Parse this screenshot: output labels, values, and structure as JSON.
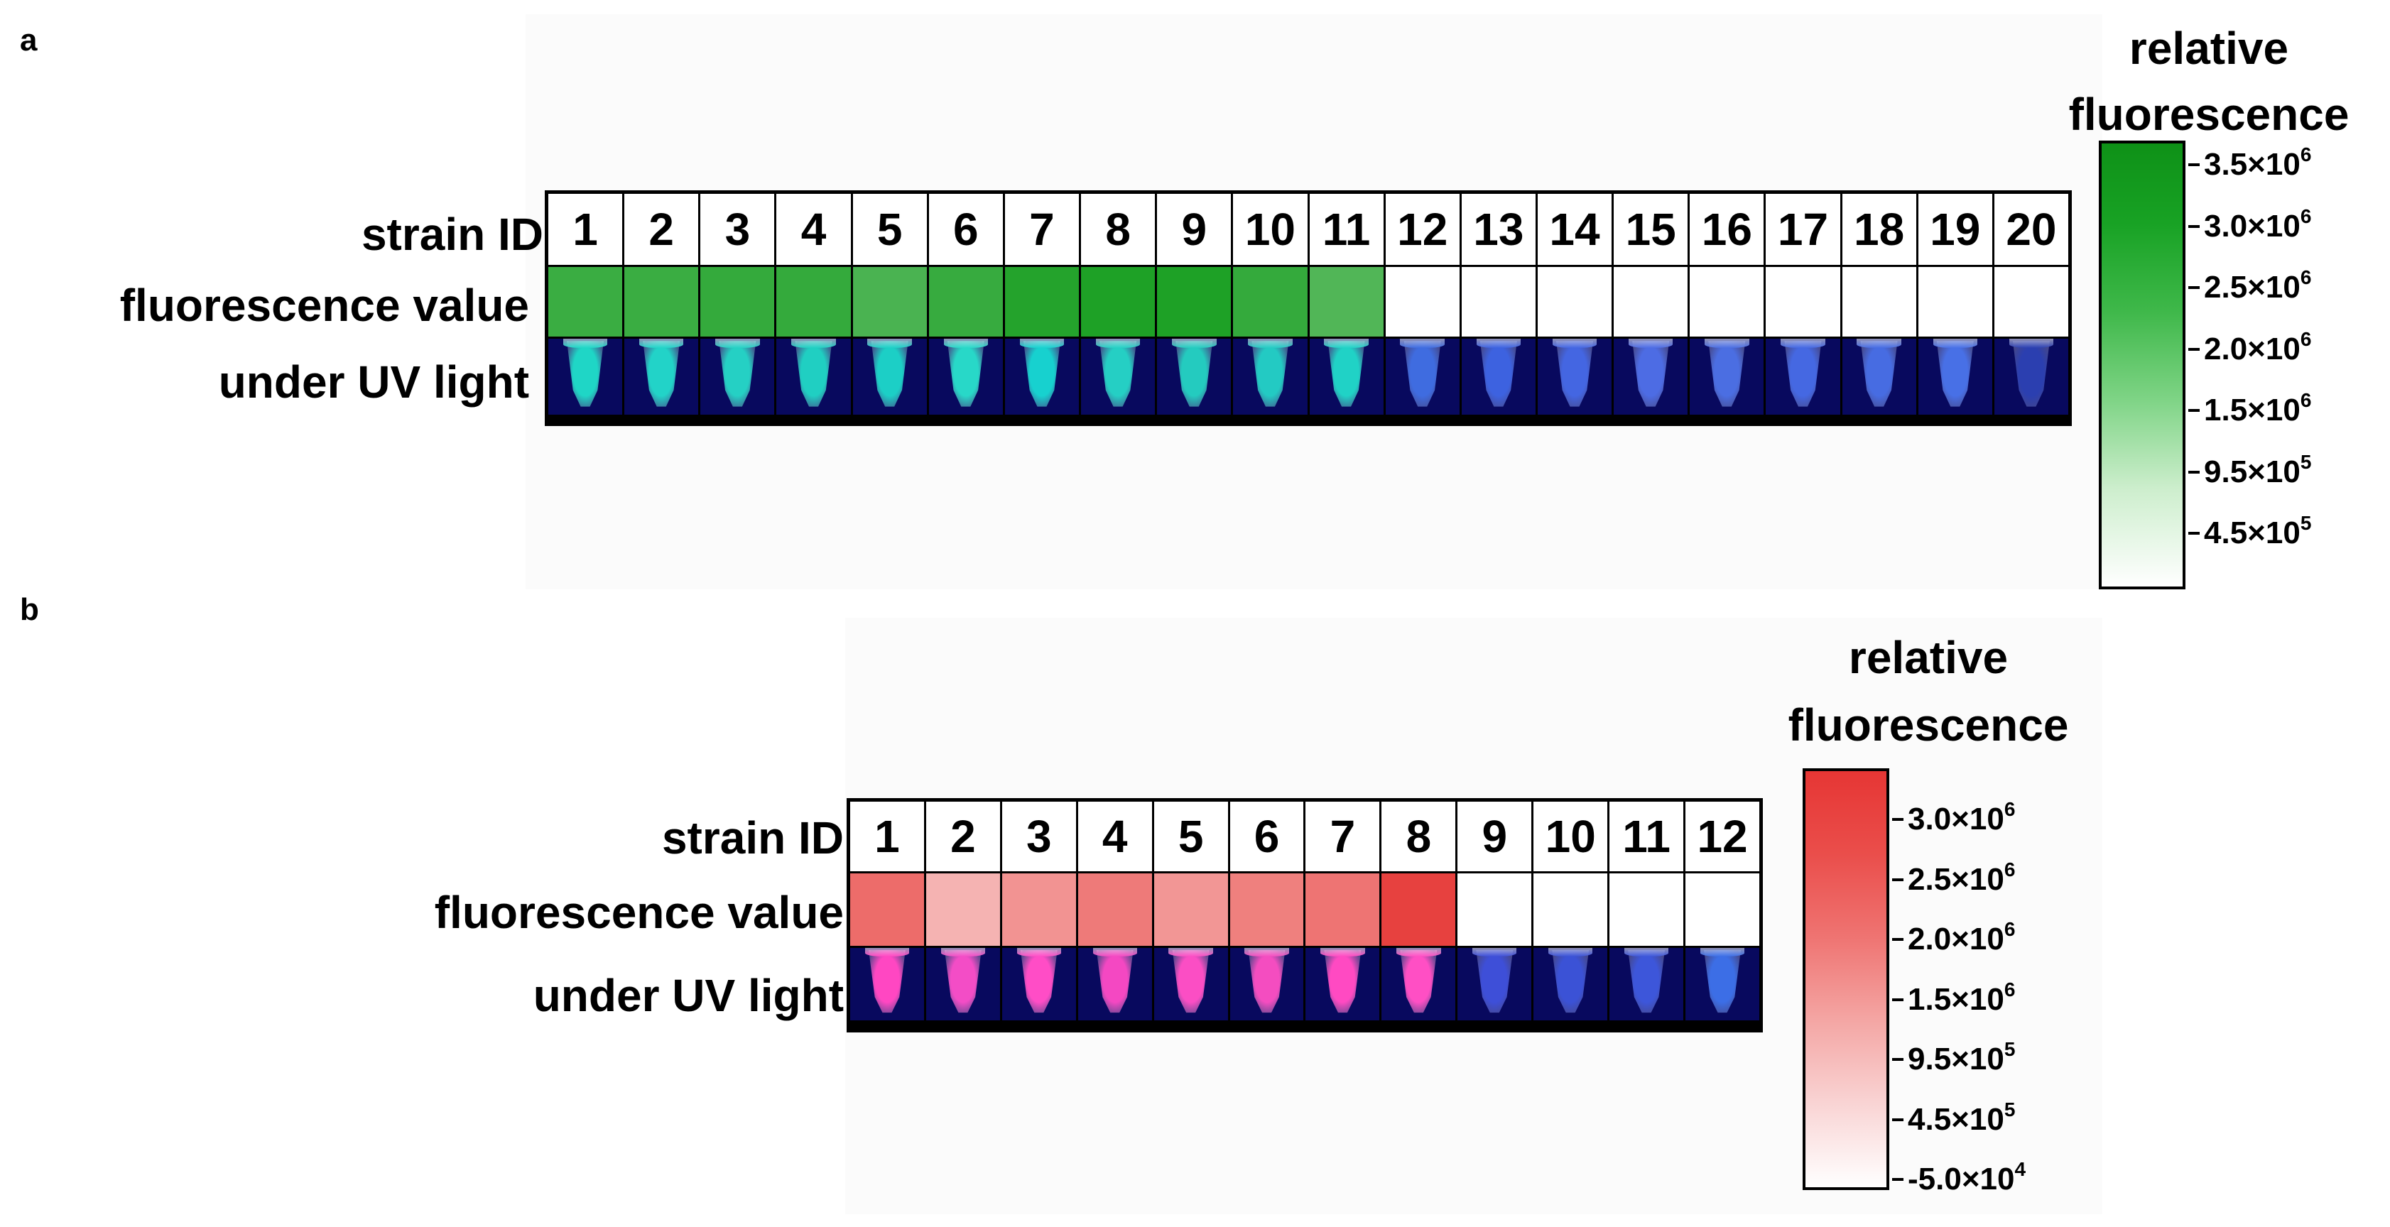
{
  "panel_a": {
    "letter": "a",
    "row_labels": {
      "strain": "strain ID",
      "fluorescence": "fluorescence value",
      "uv": "under UV light"
    },
    "colorbar": {
      "title_line1": "relative",
      "title_line2": "fluorescence",
      "ticks": [
        {
          "mantissa": "3.5×10",
          "exp": "6"
        },
        {
          "mantissa": "3.0×10",
          "exp": "6"
        },
        {
          "mantissa": "2.5×10",
          "exp": "6"
        },
        {
          "mantissa": "2.0×10",
          "exp": "6"
        },
        {
          "mantissa": "1.5×10",
          "exp": "6"
        },
        {
          "mantissa": "9.5×10",
          "exp": "5"
        },
        {
          "mantissa": "4.5×10",
          "exp": "5"
        }
      ]
    }
  },
  "panel_b": {
    "letter": "b",
    "row_labels": {
      "strain": "strain ID",
      "fluorescence": "fluorescence value",
      "uv": "under UV light"
    },
    "colorbar": {
      "title_line1": "relative",
      "title_line2": "fluorescence",
      "ticks": [
        {
          "mantissa": "3.0×10",
          "exp": "6"
        },
        {
          "mantissa": "2.5×10",
          "exp": "6"
        },
        {
          "mantissa": "2.0×10",
          "exp": "6"
        },
        {
          "mantissa": "1.5×10",
          "exp": "6"
        },
        {
          "mantissa": "9.5×10",
          "exp": "5"
        },
        {
          "mantissa": "4.5×10",
          "exp": "5"
        },
        {
          "mantissa": "-5.0×10",
          "exp": "4"
        }
      ]
    }
  },
  "chart_data": [
    {
      "type": "heatmap",
      "panel": "a",
      "title": "relative fluorescence",
      "categories": [
        "1",
        "2",
        "3",
        "4",
        "5",
        "6",
        "7",
        "8",
        "9",
        "10",
        "11",
        "12",
        "13",
        "14",
        "15",
        "16",
        "17",
        "18",
        "19",
        "20"
      ],
      "values": [
        3100000.0,
        3100000.0,
        3200000.0,
        3200000.0,
        2850000.0,
        3150000.0,
        3450000.0,
        3550000.0,
        3550000.0,
        3200000.0,
        2750000.0,
        0,
        0,
        0,
        0,
        0,
        0,
        0,
        0,
        0
      ],
      "colorscale": {
        "min": 0,
        "max": 3800000.0,
        "low_color": "#ffffff",
        "high_color": "#0e9a17"
      },
      "uv_glow": [
        "#1fd6c6",
        "#22d3c8",
        "#25d0c4",
        "#20cfc2",
        "#1ccfc6",
        "#28d8c8",
        "#17d1cf",
        "#25cfc4",
        "#24cbbf",
        "#23cac3",
        "#20d2c6",
        "#3f6ce0",
        "#3d62e0",
        "#4466e2",
        "#4d6ce4",
        "#4b6ee2",
        "#4568e2",
        "#476ce2",
        "#4870e6",
        "#2b3fb0"
      ]
    },
    {
      "type": "heatmap",
      "panel": "b",
      "title": "relative fluorescence",
      "categories": [
        "1",
        "2",
        "3",
        "4",
        "5",
        "6",
        "7",
        "8",
        "9",
        "10",
        "11",
        "12"
      ],
      "values": [
        2550000.0,
        1300000.0,
        1850000.0,
        2300000.0,
        1800000.0,
        2200000.0,
        2400000.0,
        3300000.0,
        0,
        0,
        0,
        0
      ],
      "colorscale": {
        "min": -50000.0,
        "max": 3500000.0,
        "low_color": "#ffffff",
        "high_color": "#e63634"
      },
      "uv_glow": [
        "#ff47c2",
        "#f34dc6",
        "#ff4dc6",
        "#f448c2",
        "#fb4ec4",
        "#f44dc0",
        "#ff4ac2",
        "#ff4fc4",
        "#3e4fd8",
        "#3b52d6",
        "#3d56da",
        "#3c6ee6"
      ]
    }
  ]
}
